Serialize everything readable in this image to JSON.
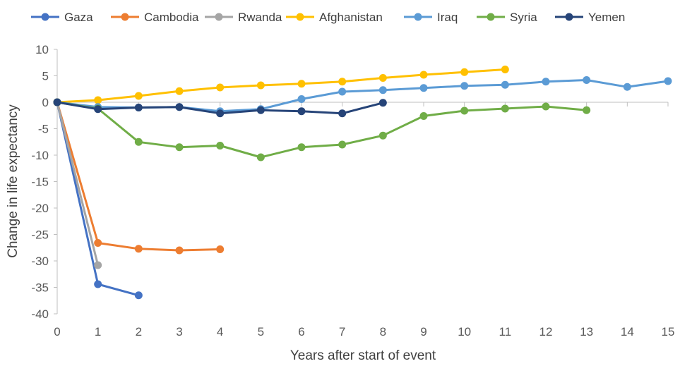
{
  "chart_data": {
    "type": "line",
    "title": "",
    "xlabel": "Years after start of event",
    "ylabel": "Change in life expectancy",
    "xlim": [
      0,
      15
    ],
    "ylim": [
      -40,
      10
    ],
    "x_ticks": [
      0,
      1,
      2,
      3,
      4,
      5,
      6,
      7,
      8,
      9,
      10,
      11,
      12,
      13,
      14,
      15
    ],
    "y_ticks": [
      10,
      5,
      0,
      -5,
      -10,
      -15,
      -20,
      -25,
      -30,
      -35,
      -40
    ],
    "legend_position": "top",
    "grid": false,
    "series": [
      {
        "name": "Gaza",
        "color": "#4472C4",
        "x": [
          0,
          1,
          2
        ],
        "values": [
          0,
          -34.4,
          -36.5
        ]
      },
      {
        "name": "Cambodia",
        "color": "#ED7D31",
        "x": [
          0,
          1,
          2,
          3,
          4
        ],
        "values": [
          0,
          -26.6,
          -27.7,
          -28.0,
          -27.8
        ]
      },
      {
        "name": "Rwanda",
        "color": "#A5A5A5",
        "x": [
          0,
          1
        ],
        "values": [
          0,
          -30.8
        ]
      },
      {
        "name": "Afghanistan",
        "color": "#FFC000",
        "x": [
          0,
          1,
          2,
          3,
          4,
          5,
          6,
          7,
          8,
          9,
          10,
          11
        ],
        "values": [
          0,
          0.4,
          1.2,
          2.1,
          2.8,
          3.2,
          3.5,
          3.9,
          4.6,
          5.2,
          5.7,
          6.2
        ]
      },
      {
        "name": "Iraq",
        "color": "#5B9BD5",
        "x": [
          0,
          1,
          2,
          3,
          4,
          5,
          6,
          7,
          8,
          9,
          10,
          11,
          12,
          13,
          14,
          15
        ],
        "values": [
          0,
          -0.9,
          -1.0,
          -0.9,
          -1.7,
          -1.3,
          0.6,
          2.0,
          2.3,
          2.7,
          3.1,
          3.3,
          3.9,
          4.2,
          2.9,
          4.0
        ]
      },
      {
        "name": "Syria",
        "color": "#70AD47",
        "x": [
          0,
          1,
          2,
          3,
          4,
          5,
          6,
          7,
          8,
          9,
          10,
          11,
          12,
          13
        ],
        "values": [
          0,
          -1.2,
          -7.5,
          -8.5,
          -8.2,
          -10.4,
          -8.5,
          -8.0,
          -6.3,
          -2.6,
          -1.6,
          -1.2,
          -0.8,
          -1.5
        ]
      },
      {
        "name": "Yemen",
        "color": "#264478",
        "x": [
          0,
          1,
          2,
          3,
          4,
          5,
          6,
          7,
          8
        ],
        "values": [
          0,
          -1.3,
          -1.0,
          -0.9,
          -2.1,
          -1.5,
          -1.7,
          -2.1,
          -0.1
        ]
      }
    ]
  }
}
